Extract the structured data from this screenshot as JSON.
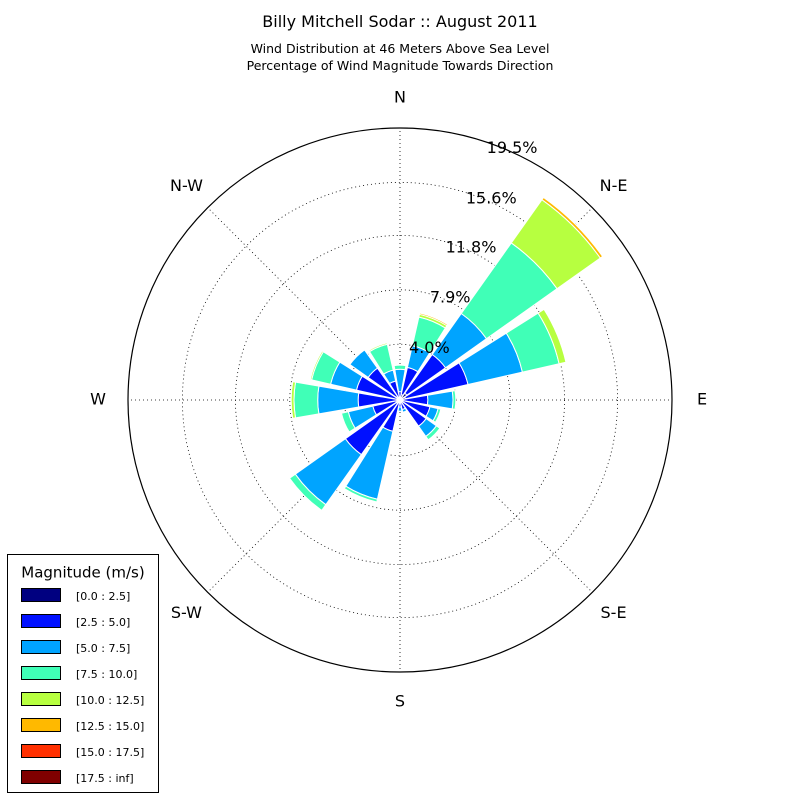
{
  "chart_data": {
    "type": "windrose",
    "title": "Billy Mitchell Sodar :: August 2011",
    "subtitle_lines": [
      "Wind Distribution at 46 Meters Above Sea Level",
      "Percentage of Wind Magnitude Towards Direction"
    ],
    "directions": [
      {
        "label": "N",
        "angle": 0
      },
      {
        "label": "N-E",
        "angle": 45
      },
      {
        "label": "E",
        "angle": 90
      },
      {
        "label": "S-E",
        "angle": 135
      },
      {
        "label": "S",
        "angle": 180
      },
      {
        "label": "S-W",
        "angle": 225
      },
      {
        "label": "W",
        "angle": 270
      },
      {
        "label": "N-W",
        "angle": 315
      }
    ],
    "radial_ticks": [
      "4.0%",
      "7.9%",
      "11.8%",
      "15.6%",
      "19.5%"
    ],
    "radial_max": 19.5,
    "sector_count": 16,
    "legend": {
      "title": "Magnitude (m/s)",
      "placement": "lower-left",
      "bins": [
        {
          "label": "[0.0 : 2.5]",
          "color": "#000080"
        },
        {
          "label": "[2.5 : 5.0]",
          "color": "#0010ff"
        },
        {
          "label": "[5.0 : 7.5]",
          "color": "#00a4ff"
        },
        {
          "label": "[7.5 : 10.0]",
          "color": "#40ffb7"
        },
        {
          "label": "[10.0 : 12.5]",
          "color": "#b7ff40"
        },
        {
          "label": "[12.5 : 15.0]",
          "color": "#ffb900"
        },
        {
          "label": "[15.0 : 17.5]",
          "color": "#ff3000"
        },
        {
          "label": "[17.5 : inf]",
          "color": "#800000"
        }
      ]
    },
    "sectors": [
      {
        "direction_deg": 0,
        "cumulative_pct": [
          0.2,
          0.6,
          2.2,
          2.5,
          2.5,
          2.5,
          2.5,
          2.5
        ]
      },
      {
        "direction_deg": 22.5,
        "cumulative_pct": [
          0.4,
          2.4,
          4.0,
          6.1,
          6.3,
          6.4,
          6.4,
          6.4
        ]
      },
      {
        "direction_deg": 45,
        "cumulative_pct": [
          0.6,
          4.0,
          7.6,
          13.8,
          17.6,
          17.8,
          17.8,
          17.8
        ]
      },
      {
        "direction_deg": 67.5,
        "cumulative_pct": [
          0.4,
          5.0,
          9.0,
          11.7,
          12.2,
          12.2,
          12.2,
          12.2
        ]
      },
      {
        "direction_deg": 90,
        "cumulative_pct": [
          0.2,
          2.0,
          3.8,
          4.0,
          4.0,
          4.0,
          4.0,
          4.0
        ]
      },
      {
        "direction_deg": 112.5,
        "cumulative_pct": [
          0.2,
          2.2,
          2.8,
          3.0,
          3.0,
          3.0,
          3.0,
          3.0
        ]
      },
      {
        "direction_deg": 135,
        "cumulative_pct": [
          0.2,
          2.3,
          3.2,
          3.5,
          3.5,
          3.5,
          3.5,
          3.5
        ]
      },
      {
        "direction_deg": 157.5,
        "cumulative_pct": [
          0.2,
          0.7,
          0.9,
          0.9,
          0.9,
          0.9,
          0.9,
          0.9
        ]
      },
      {
        "direction_deg": 180,
        "cumulative_pct": [
          0.2,
          0.5,
          0.8,
          0.8,
          0.8,
          0.8,
          0.8,
          0.8
        ]
      },
      {
        "direction_deg": 202.5,
        "cumulative_pct": [
          0.2,
          2.3,
          7.3,
          7.5,
          7.5,
          7.5,
          7.5,
          7.5
        ]
      },
      {
        "direction_deg": 225,
        "cumulative_pct": [
          0.3,
          4.8,
          9.2,
          9.7,
          9.7,
          9.7,
          9.7,
          9.7
        ]
      },
      {
        "direction_deg": 247.5,
        "cumulative_pct": [
          0.3,
          2.0,
          3.8,
          4.3,
          4.3,
          4.3,
          4.3,
          4.3
        ]
      },
      {
        "direction_deg": 270,
        "cumulative_pct": [
          0.2,
          3.0,
          5.9,
          7.6,
          7.8,
          7.8,
          7.8,
          7.8
        ]
      },
      {
        "direction_deg": 292.5,
        "cumulative_pct": [
          0.2,
          3.2,
          5.1,
          6.5,
          6.6,
          6.6,
          6.6,
          6.6
        ]
      },
      {
        "direction_deg": 315,
        "cumulative_pct": [
          0.3,
          2.8,
          4.4,
          4.4,
          4.4,
          4.4,
          4.4,
          4.4
        ]
      },
      {
        "direction_deg": 337.5,
        "cumulative_pct": [
          0.2,
          1.4,
          2.2,
          4.1,
          4.2,
          4.2,
          4.2,
          4.2
        ]
      }
    ]
  }
}
